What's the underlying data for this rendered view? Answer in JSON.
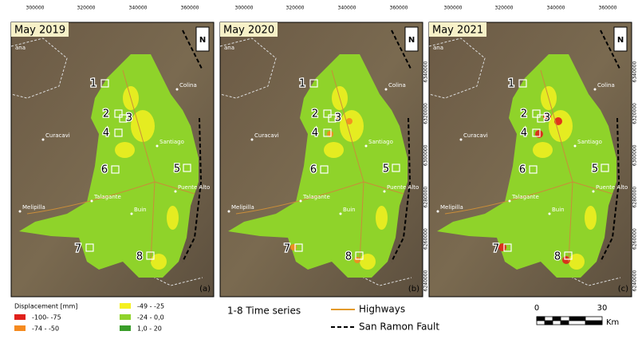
{
  "panels": [
    {
      "title": "May 2019",
      "label": "(a)",
      "north": "N",
      "xticks": [
        "300000",
        "320000",
        "340000",
        "360000"
      ],
      "places": [
        "ana",
        "Colina",
        "Curacavi",
        "Santiago",
        "Puente Alto",
        "Melipilla",
        "Talagante",
        "Buin"
      ],
      "markers": [
        "1",
        "2",
        "3",
        "4",
        "5",
        "6",
        "7",
        "8"
      ]
    },
    {
      "title": "May 2020",
      "label": "(b)",
      "north": "N",
      "xticks": [
        "300000",
        "320000",
        "340000",
        "360000"
      ],
      "yticks": [
        "6340000",
        "6320000",
        "6300000",
        "6280000",
        "6260000",
        "6240000"
      ],
      "places": [
        "ana",
        "Colina",
        "Curacavi",
        "Santiago",
        "Puente Alto",
        "Melipilla",
        "Talagante",
        "Buin"
      ],
      "markers": [
        "1",
        "2",
        "3",
        "4",
        "5",
        "6",
        "7",
        "8"
      ]
    },
    {
      "title": "May 2021",
      "label": "(c)",
      "north": "N",
      "xticks": [
        "300000",
        "320000",
        "340000",
        "360000"
      ],
      "yticks": [
        "6340000",
        "6320000",
        "6300000",
        "6280000",
        "6260000",
        "6240000"
      ],
      "places": [
        "ana",
        "Colina",
        "Curacavi",
        "Santiago",
        "Puente Alto",
        "Melipilla",
        "Talagante",
        "Buin"
      ],
      "markers": [
        "1",
        "2",
        "3",
        "4",
        "5",
        "6",
        "7",
        "8"
      ]
    }
  ],
  "legend": {
    "title": "Displacement [mm]",
    "classes": [
      "-100- -75",
      "-74 - -50",
      "-49 - -25",
      "-24 - 0,0",
      "1,0 - 20"
    ],
    "time_series": "1-8 Time series",
    "highways": "Highways",
    "fault": "San Ramon Fault"
  },
  "scale": {
    "start": "0",
    "end": "30",
    "unit": "Km"
  }
}
